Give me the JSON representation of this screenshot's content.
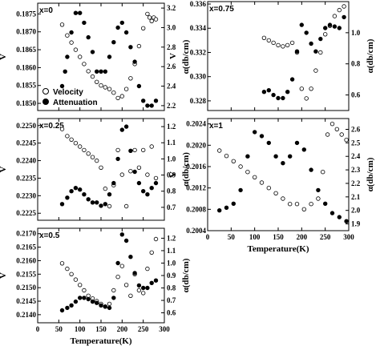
{
  "chart_data": [
    {
      "type": "scatter",
      "panel_label": "x=0",
      "ylabel_left": "V",
      "ylabel_right": "α(db/cm)",
      "xlim": [
        0,
        300
      ],
      "ylim_left": [
        0.1848,
        0.1878
      ],
      "yticks_left": [
        "0.1850",
        "0.1855",
        "0.1860",
        "0.1865",
        "0.1870",
        "0.1875"
      ],
      "ylim_right": [
        2.15,
        3.25
      ],
      "yticks_right": [
        "2.2",
        "2.4",
        "2.6",
        "2.8",
        "3.0",
        "3.2"
      ],
      "legend": [
        "Velocity",
        "Attenuation"
      ],
      "series": [
        {
          "name": "Velocity",
          "axis": "left",
          "marker": "open",
          "x": [
            58,
            70,
            80,
            90,
            100,
            110,
            120,
            130,
            140,
            150,
            160,
            170,
            180,
            190,
            200,
            210,
            220,
            230,
            240,
            250,
            260,
            265,
            270,
            275,
            280
          ],
          "y": [
            0.1872,
            0.1869,
            0.1867,
            0.1865,
            0.1863,
            0.1861,
            0.1859,
            0.18575,
            0.1856,
            0.1855,
            0.18545,
            0.1854,
            0.1853,
            0.18515,
            0.1852,
            0.1854,
            0.1857,
            0.1861,
            0.1866,
            0.1871,
            0.1875,
            0.1874,
            0.1873,
            0.1874,
            0.18735
          ]
        },
        {
          "name": "Attenuation",
          "axis": "right",
          "marker": "filled",
          "x": [
            58,
            65,
            70,
            80,
            90,
            100,
            110,
            120,
            130,
            140,
            150,
            160,
            170,
            180,
            190,
            200,
            210,
            220,
            230,
            240,
            250,
            260,
            270,
            280
          ],
          "y": [
            2.4,
            2.55,
            2.7,
            2.95,
            3.15,
            3.15,
            3.05,
            2.9,
            2.75,
            2.55,
            2.55,
            2.55,
            2.7,
            2.85,
            3.0,
            3.05,
            2.95,
            2.8,
            2.65,
            2.4,
            2.25,
            2.2,
            2.2,
            2.25
          ]
        }
      ]
    },
    {
      "type": "scatter",
      "panel_label": "x=0.75",
      "ylabel_left": "V",
      "ylabel_right": "α(db/cm)",
      "xlim": [
        0,
        300
      ],
      "ylim_left": [
        0.3272,
        0.3362
      ],
      "yticks_left": [
        "0.328",
        "0.330",
        "0.332",
        "0.334",
        "0.336"
      ],
      "ylim_right": [
        0.5,
        1.2
      ],
      "yticks_right": [
        "0.6",
        "0.8",
        "1.0"
      ],
      "series": [
        {
          "name": "Velocity",
          "axis": "left",
          "marker": "open",
          "x": [
            120,
            130,
            140,
            150,
            160,
            170,
            180,
            190,
            200,
            210,
            220,
            230,
            240,
            250,
            260,
            270,
            280,
            290
          ],
          "y": [
            0.3332,
            0.333,
            0.3328,
            0.3326,
            0.3325,
            0.3326,
            0.3328,
            0.332,
            0.329,
            0.3282,
            0.329,
            0.3305,
            0.332,
            0.3335,
            0.3342,
            0.335,
            0.3355,
            0.3358
          ]
        },
        {
          "name": "Attenuation",
          "axis": "right",
          "marker": "filled",
          "x": [
            120,
            130,
            140,
            150,
            160,
            170,
            180,
            190,
            200,
            210,
            220,
            230,
            240,
            250,
            260,
            270,
            280,
            290
          ],
          "y": [
            0.62,
            0.63,
            0.6,
            0.58,
            0.58,
            0.62,
            0.7,
            0.88,
            1.05,
            1.0,
            0.93,
            0.88,
            0.96,
            1.03,
            1.05,
            1.04,
            1.03,
            1.1
          ]
        }
      ]
    },
    {
      "type": "scatter",
      "panel_label": "x=0.25",
      "ylabel_left": "V",
      "ylabel_right": "α(db/cm)",
      "xlim": [
        0,
        300
      ],
      "ylim_left": [
        0.2223,
        0.2252
      ],
      "yticks_left": [
        "0.2225",
        "0.2230",
        "0.2235",
        "0.2240",
        "0.2245",
        "0.2250"
      ],
      "ylim_right": [
        0.62,
        1.25
      ],
      "yticks_right": [
        "0.7",
        "0.8",
        "0.9",
        "1.0",
        "1.1",
        "1.2"
      ],
      "series": [
        {
          "name": "Velocity",
          "axis": "left",
          "marker": "open",
          "x": [
            58,
            70,
            80,
            90,
            100,
            110,
            120,
            130,
            140,
            150,
            160,
            170,
            180,
            190,
            200,
            210,
            220,
            230,
            240,
            250,
            260,
            270,
            280
          ],
          "y": [
            0.2249,
            0.2247,
            0.2246,
            0.2245,
            0.2244,
            0.2243,
            0.2242,
            0.2241,
            0.224,
            0.2238,
            0.2232,
            0.2227,
            0.2233,
            0.2243,
            0.2236,
            0.2227,
            0.2237,
            0.2243,
            0.2238,
            0.2243,
            0.2236,
            0.2244,
            0.2235
          ]
        },
        {
          "name": "Attenuation",
          "axis": "right",
          "marker": "filled",
          "x": [
            58,
            70,
            80,
            90,
            100,
            110,
            120,
            130,
            140,
            150,
            160,
            170,
            180,
            190,
            200,
            210,
            220,
            230,
            240,
            250,
            260,
            270,
            280
          ],
          "y": [
            0.72,
            0.76,
            0.8,
            0.82,
            0.81,
            0.78,
            0.75,
            0.73,
            0.73,
            0.71,
            0.72,
            0.78,
            0.85,
            1.0,
            1.18,
            1.2,
            1.05,
            0.92,
            0.85,
            0.8,
            0.78,
            0.82,
            0.85
          ]
        }
      ]
    },
    {
      "type": "scatter",
      "panel_label": "x=1",
      "ylabel_left": "V",
      "ylabel_right": "α(db/cm)",
      "xlabel": "Temperature(K)",
      "xlim": [
        0,
        300
      ],
      "xticks": [
        "0",
        "50",
        "100",
        "150",
        "200",
        "250",
        "300"
      ],
      "ylim_left": [
        0.2004,
        0.2025
      ],
      "yticks_left": [
        "0.2004",
        "0.2008",
        "0.2012",
        "0.2016",
        "0.2020",
        "0.2024"
      ],
      "ylim_right": [
        1.85,
        2.68
      ],
      "yticks_right": [
        "1.9",
        "2.0",
        "2.1",
        "2.2",
        "2.3",
        "2.4",
        "2.5",
        "2.6"
      ],
      "series": [
        {
          "name": "Velocity",
          "axis": "left",
          "marker": "open",
          "x": [
            25,
            40,
            55,
            70,
            85,
            100,
            115,
            130,
            145,
            160,
            175,
            190,
            205,
            220,
            235,
            245,
            255,
            265,
            275,
            285,
            295
          ],
          "y": [
            0.2019,
            0.2018,
            0.2017,
            0.2016,
            0.2015,
            0.2014,
            0.2013,
            0.2012,
            0.2011,
            0.201,
            0.2009,
            0.2009,
            0.2008,
            0.2009,
            0.201,
            0.2015,
            0.2022,
            0.2024,
            0.2023,
            0.2022,
            0.2021
          ]
        },
        {
          "name": "Attenuation",
          "axis": "right",
          "marker": "filled",
          "x": [
            25,
            40,
            55,
            70,
            85,
            100,
            115,
            130,
            145,
            160,
            175,
            190,
            205,
            220,
            235,
            250,
            265,
            280,
            295
          ],
          "y": [
            2.0,
            2.02,
            2.05,
            2.15,
            2.4,
            2.58,
            2.55,
            2.5,
            2.4,
            2.35,
            2.4,
            2.5,
            2.45,
            2.3,
            2.15,
            2.05,
            1.98,
            1.95,
            1.92
          ]
        }
      ]
    },
    {
      "type": "scatter",
      "panel_label": "x=0.5",
      "ylabel_left": "V",
      "ylabel_right": "α(db/cm)",
      "xlabel": "Temperature(K)",
      "xlim": [
        0,
        300
      ],
      "xticks": [
        "0",
        "50",
        "100",
        "150",
        "200",
        "250",
        "300"
      ],
      "ylim_left": [
        0.2137,
        0.2172
      ],
      "yticks_left": [
        "0.2140",
        "0.2145",
        "0.2150",
        "0.2155",
        "0.2160",
        "0.2165",
        "0.2170"
      ],
      "ylim_right": [
        0.52,
        1.28
      ],
      "yticks_right": [
        "0.6",
        "0.7",
        "0.8",
        "0.9",
        "1.0",
        "1.1",
        "1.2"
      ],
      "series": [
        {
          "name": "Velocity",
          "axis": "left",
          "marker": "open",
          "x": [
            58,
            70,
            80,
            90,
            100,
            110,
            120,
            130,
            140,
            150,
            160,
            170,
            180,
            190,
            200,
            210,
            220,
            230,
            240,
            250,
            260,
            270,
            280
          ],
          "y": [
            0.2159,
            0.2157,
            0.2155,
            0.2153,
            0.2151,
            0.2149,
            0.2147,
            0.2146,
            0.2145,
            0.2144,
            0.2143,
            0.2144,
            0.2149,
            0.2154,
            0.2158,
            0.2151,
            0.2147,
            0.2155,
            0.2149,
            0.2148,
            0.2157,
            0.2163,
            0.2168
          ]
        },
        {
          "name": "Attenuation",
          "axis": "right",
          "marker": "filled",
          "x": [
            58,
            70,
            80,
            90,
            100,
            110,
            120,
            130,
            140,
            150,
            160,
            170,
            180,
            190,
            200,
            210,
            220,
            230,
            240,
            250,
            260,
            270,
            280
          ],
          "y": [
            0.62,
            0.64,
            0.66,
            0.69,
            0.72,
            0.72,
            0.71,
            0.69,
            0.68,
            0.66,
            0.65,
            0.64,
            0.72,
            1.0,
            1.23,
            1.18,
            1.05,
            0.92,
            0.82,
            0.8,
            0.8,
            0.84,
            0.86
          ]
        }
      ]
    }
  ]
}
